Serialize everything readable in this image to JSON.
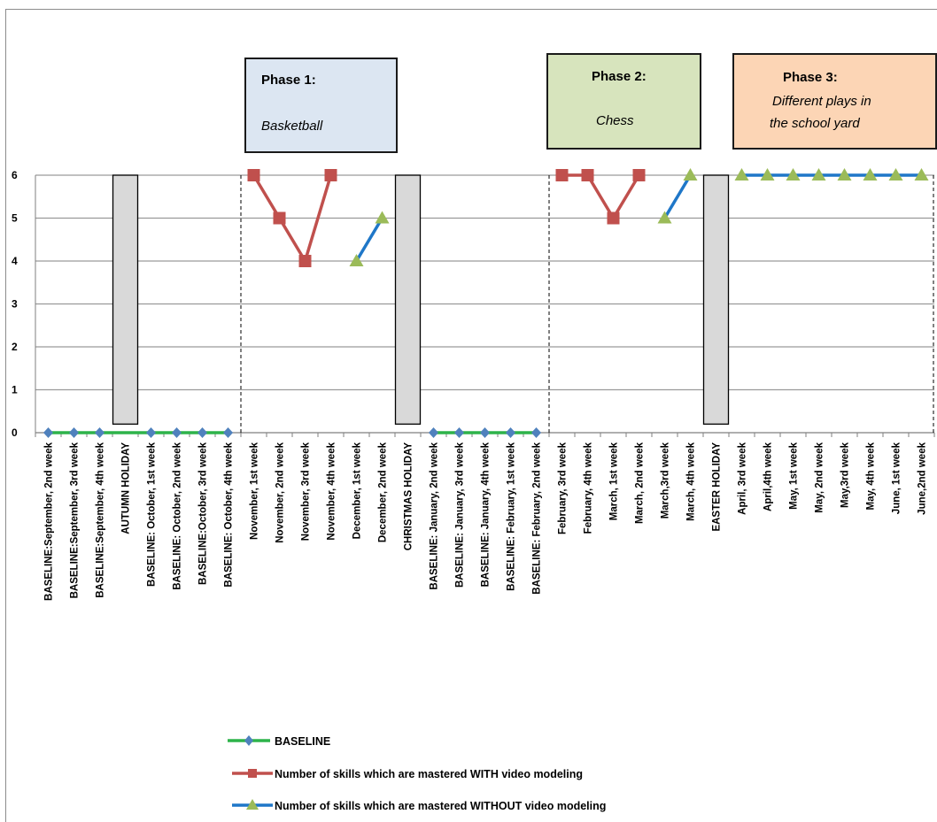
{
  "chart_data": {
    "type": "line",
    "ylim": [
      0,
      6
    ],
    "yticks": [
      "0",
      "1",
      "2",
      "3",
      "4",
      "5",
      "6"
    ],
    "categories": [
      "BASELINE:September, 2nd week",
      "BASELINE:September, 3rd week",
      "BASELINE:September, 4th week",
      "AUTUMN HOLIDAY",
      "BASELINE: October, 1st week",
      "BASELINE: October, 2nd week",
      "BASELINE:October, 3rd week",
      "BASELINE: October, 4th week",
      "November, 1st week",
      "November, 2nd week",
      "November, 3rd week",
      "November, 4th week",
      "December, 1st week",
      "December, 2nd week",
      "CHRISTMAS HOLIDAY",
      "BASELINE: January, 2nd week",
      "BASELINE: January, 3rd week",
      "BASELINE: January, 4th week",
      "BASELINE: February, 1st week",
      "BASELINE: February, 2nd week",
      "February, 3rd week",
      "February, 4th week",
      "March, 1st week",
      "March, 2nd week",
      "March,3rd week",
      "March, 4th week",
      "EASTER HOLIDAY",
      "April, 3rd week",
      "April,4th week",
      "May, 1st week",
      "May, 2nd week",
      "May,3rd week",
      "May, 4th week",
      "June, 1st week",
      "June,2nd week"
    ],
    "series": [
      {
        "name": "BASELINE",
        "color": "#2db34a",
        "marker_color": "#4f81bd",
        "marker": "diamond",
        "segments": [
          [
            [
              0,
              0
            ],
            [
              1,
              0
            ],
            [
              2,
              0
            ],
            [
              4,
              0
            ],
            [
              5,
              0
            ],
            [
              6,
              0
            ],
            [
              7,
              0
            ]
          ],
          [
            [
              15,
              0
            ],
            [
              16,
              0
            ],
            [
              17,
              0
            ],
            [
              18,
              0
            ],
            [
              19,
              0
            ]
          ]
        ]
      },
      {
        "name": "Number of skills which are mastered WITH video modeling",
        "color": "#c0504d",
        "marker_color": "#c0504d",
        "marker": "square",
        "segments": [
          [
            [
              8,
              6
            ],
            [
              9,
              5
            ],
            [
              10,
              4
            ],
            [
              11,
              6
            ]
          ],
          [
            [
              20,
              6
            ],
            [
              21,
              6
            ],
            [
              22,
              5
            ],
            [
              23,
              6
            ]
          ]
        ]
      },
      {
        "name": "Number of skills which are mastered WITHOUT video modeling",
        "color": "#1f77c8",
        "marker_color": "#9bbb59",
        "marker": "triangle",
        "segments": [
          [
            [
              12,
              4
            ],
            [
              13,
              5
            ]
          ],
          [
            [
              24,
              5
            ],
            [
              25,
              6
            ]
          ],
          [
            [
              27,
              6
            ],
            [
              28,
              6
            ],
            [
              29,
              6
            ],
            [
              30,
              6
            ],
            [
              31,
              6
            ],
            [
              32,
              6
            ],
            [
              33,
              6
            ],
            [
              34,
              6
            ]
          ]
        ]
      }
    ],
    "holidays": [
      3,
      14,
      26
    ],
    "phase_dividers": [
      7.5,
      19.5,
      34
    ],
    "grid": true,
    "legend_position": "bottom-left"
  },
  "phases": [
    {
      "title": "Phase 1:",
      "subtitle": "Basketball",
      "fill": "#dce6f2"
    },
    {
      "title": "Phase 2:",
      "subtitle": "Chess",
      "fill": "#d7e4bd"
    },
    {
      "title": "Phase 3:",
      "subtitle_line1": "Different plays in",
      "subtitle_line2": "the school yard",
      "fill": "#fcd5b5"
    }
  ],
  "legend": [
    {
      "label": "BASELINE"
    },
    {
      "label": "Number of skills which are mastered WITH video modeling"
    },
    {
      "label": "Number of skills which are mastered WITHOUT video modeling"
    }
  ]
}
